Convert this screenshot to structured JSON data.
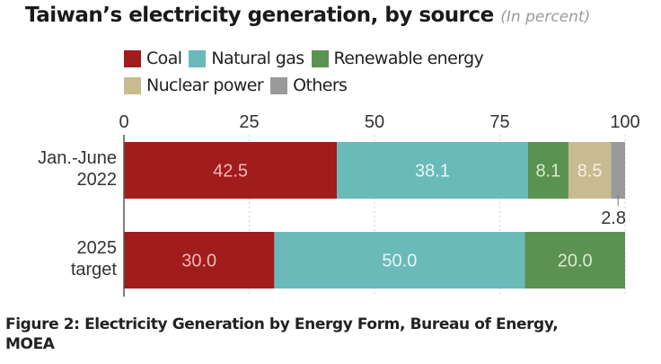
{
  "chart_data": {
    "type": "bar",
    "orientation": "horizontal",
    "stacked": true,
    "title": "Taiwan’s electricity generation, by source",
    "subtitle": "(In percent)",
    "xlabel": "",
    "ylabel": "",
    "xlim": [
      0,
      100
    ],
    "x_ticks": [
      "0",
      "25",
      "50",
      "75",
      "100"
    ],
    "x_tick_values": [
      0,
      25,
      50,
      75,
      100
    ],
    "grid": true,
    "legend_position": "top",
    "categories": [
      {
        "label_lines": [
          "Jan.-June",
          "2022"
        ]
      },
      {
        "label_lines": [
          "2025",
          "target"
        ]
      }
    ],
    "series": [
      {
        "name": "Coal",
        "color": "#a11c1d",
        "label_color": "#f2b8b4",
        "values": [
          42.5,
          30.0
        ]
      },
      {
        "name": "Natural gas",
        "color": "#6ababa",
        "label_color": "#e6f6f5",
        "values": [
          38.1,
          50.0
        ]
      },
      {
        "name": "Renewable energy",
        "color": "#5b9151",
        "label_color": "#d8eccf",
        "values": [
          8.1,
          20.0
        ]
      },
      {
        "name": "Nuclear power",
        "color": "#c8bb92",
        "label_color": "#f6f0de",
        "values": [
          8.5,
          0
        ]
      },
      {
        "name": "Others",
        "color": "#9a9a9a",
        "label_color": "#333333",
        "values": [
          2.8,
          0
        ]
      }
    ],
    "data_labels": [
      [
        "42.5",
        "38.1",
        "8.1",
        "8.5",
        "2.8"
      ],
      [
        "30.0",
        "50.0",
        "20.0",
        "",
        ""
      ]
    ],
    "annotations": [
      {
        "text": "2.8",
        "series": "Others",
        "category_index": 0,
        "placement": "below-bar-with-leader"
      }
    ]
  },
  "caption": {
    "line1": "Figure 2: Electricity Generation by Energy Form, Bureau of Energy,",
    "line2": "MOEA"
  }
}
